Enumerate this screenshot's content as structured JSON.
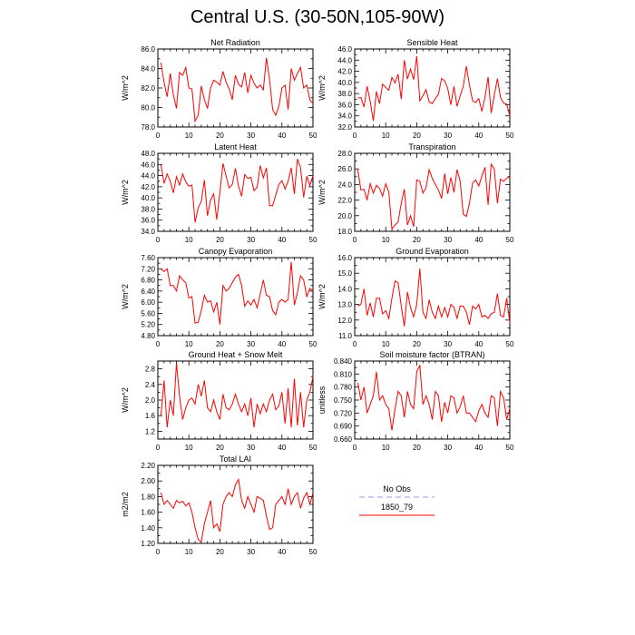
{
  "page": {
    "title": "Central U.S. (30-50N,105-90W)"
  },
  "legend": {
    "entries": [
      {
        "label": "No Obs",
        "color": "#9999ee",
        "dashed": true
      },
      {
        "label": "1850_79",
        "color": "#ff0000",
        "dashed": false
      }
    ]
  },
  "chart_data": [
    {
      "type": "line",
      "title": "Net Radiation",
      "ylabel": "W/m^2",
      "xlim": [
        0,
        50
      ],
      "ylim": [
        78.0,
        86.0
      ],
      "xticks": [
        0,
        10,
        20,
        30,
        40,
        50
      ],
      "yticks": [
        78.0,
        80.0,
        82.0,
        84.0,
        86.0
      ],
      "ydecimals": 1,
      "series": [
        {
          "color": "#ff0000",
          "values": [
            84.6,
            82.6,
            81.1,
            83.5,
            81.3,
            79.9,
            83.6,
            83.3,
            84.1,
            82.0,
            81.9,
            78.6,
            79.2,
            82.2,
            80.8,
            79.9,
            82.0,
            82.8,
            82.6,
            82.3,
            83.7,
            82.6,
            81.9,
            80.8,
            83.3,
            82.4,
            82.1,
            83.6,
            81.5,
            83.3,
            82.5,
            82.0,
            82.3,
            81.8,
            85.1,
            82.9,
            79.8,
            79.2,
            80.1,
            82.0,
            82.3,
            79.8,
            84.0,
            82.8,
            83.5,
            84.1,
            82.0,
            82.3,
            80.8,
            80.4
          ]
        }
      ]
    },
    {
      "type": "line",
      "title": "Sensible Heat",
      "ylabel": "W/m^2",
      "xlim": [
        0,
        50
      ],
      "ylim": [
        32.0,
        46.0
      ],
      "xticks": [
        0,
        10,
        20,
        30,
        40,
        50
      ],
      "yticks": [
        32.0,
        34.0,
        36.0,
        38.0,
        40.0,
        42.0,
        44.0,
        46.0
      ],
      "ydecimals": 1,
      "series": [
        {
          "color": "#ff0000",
          "values": [
            37.2,
            37.3,
            35.6,
            39.3,
            36.6,
            33.1,
            38.4,
            36.2,
            39.7,
            39.1,
            38.6,
            40.9,
            39.9,
            41.5,
            37.0,
            44.0,
            40.6,
            42.4,
            40.5,
            44.7,
            36.7,
            37.6,
            38.7,
            36.5,
            36.2,
            37.1,
            37.9,
            40.7,
            40.3,
            38.9,
            36.0,
            39.3,
            35.7,
            37.6,
            39.3,
            42.9,
            39.5,
            36.7,
            36.4,
            37.1,
            34.8,
            37.3,
            41.0,
            34.5,
            37.7,
            40.7,
            37.3,
            36.3,
            36.1,
            34.0
          ]
        }
      ]
    },
    {
      "type": "line",
      "title": "Latent Heat",
      "ylabel": "W/m^2",
      "xlim": [
        0,
        50
      ],
      "ylim": [
        34.0,
        48.0
      ],
      "xticks": [
        0,
        10,
        20,
        30,
        40,
        50
      ],
      "yticks": [
        34.0,
        36.0,
        38.0,
        40.0,
        42.0,
        44.0,
        46.0,
        48.0
      ],
      "ydecimals": 1,
      "series": [
        {
          "color": "#ff0000",
          "values": [
            46.0,
            42.6,
            44.3,
            43.0,
            40.9,
            43.8,
            42.3,
            44.3,
            42.9,
            42.1,
            42.3,
            35.6,
            38.2,
            39.4,
            43.2,
            36.8,
            39.6,
            40.7,
            36.1,
            41.0,
            46.2,
            43.9,
            41.8,
            42.4,
            45.3,
            42.1,
            40.3,
            44.2,
            43.5,
            43.7,
            41.3,
            41.9,
            45.8,
            43.6,
            45.4,
            38.6,
            38.6,
            40.5,
            42.4,
            43.1,
            41.6,
            43.0,
            45.4,
            40.7,
            47.0,
            45.4,
            40.1,
            43.9,
            42.2,
            44.0
          ]
        }
      ]
    },
    {
      "type": "line",
      "title": "Transpiration",
      "ylabel": "W/m^2",
      "xlim": [
        0,
        50
      ],
      "ylim": [
        18.0,
        28.0
      ],
      "xticks": [
        0,
        10,
        20,
        30,
        40,
        50
      ],
      "yticks": [
        18.0,
        20.0,
        22.0,
        24.0,
        26.0,
        28.0
      ],
      "ydecimals": 1,
      "series": [
        {
          "color": "#ff0000",
          "values": [
            25.9,
            23.3,
            23.4,
            22.0,
            24.1,
            22.9,
            23.9,
            23.5,
            22.5,
            24.1,
            23.0,
            18.3,
            18.8,
            19.2,
            21.6,
            23.4,
            18.8,
            20.0,
            18.6,
            24.6,
            24.4,
            22.9,
            23.6,
            25.9,
            24.8,
            24.0,
            23.3,
            22.2,
            25.4,
            22.8,
            24.9,
            23.0,
            25.9,
            24.4,
            20.2,
            19.9,
            21.6,
            24.2,
            24.6,
            23.8,
            25.1,
            26.2,
            21.4,
            26.6,
            26.0,
            21.6,
            24.7,
            24.4,
            24.8,
            25.0
          ]
        }
      ]
    },
    {
      "type": "line",
      "title": "Canopy Evaporation",
      "ylabel": "W/m^2",
      "xlim": [
        0,
        50
      ],
      "ylim": [
        4.8,
        7.6
      ],
      "xticks": [
        0,
        10,
        20,
        30,
        40,
        50
      ],
      "yticks": [
        4.8,
        5.2,
        5.6,
        6.0,
        6.4,
        6.8,
        7.2,
        7.6
      ],
      "ydecimals": 2,
      "series": [
        {
          "color": "#ff0000",
          "values": [
            7.2,
            7.1,
            7.2,
            6.6,
            6.6,
            6.4,
            6.95,
            6.8,
            6.7,
            6.15,
            6.2,
            5.25,
            5.28,
            5.7,
            6.25,
            6.0,
            6.05,
            5.65,
            6.0,
            5.2,
            6.6,
            6.4,
            6.5,
            6.7,
            6.9,
            7.0,
            6.6,
            5.85,
            6.05,
            5.9,
            6.1,
            5.8,
            6.3,
            6.8,
            6.25,
            6.2,
            5.7,
            5.55,
            6.0,
            6.1,
            6.0,
            6.1,
            7.45,
            5.9,
            6.35,
            6.95,
            6.8,
            6.2,
            6.5,
            6.4
          ]
        }
      ]
    },
    {
      "type": "line",
      "title": "Ground Evaporation",
      "ylabel": "W/m^2",
      "xlim": [
        0,
        50
      ],
      "ylim": [
        11.0,
        16.0
      ],
      "xticks": [
        0,
        10,
        20,
        30,
        40,
        50
      ],
      "yticks": [
        11.0,
        12.0,
        13.0,
        14.0,
        15.0,
        16.0
      ],
      "ydecimals": 1,
      "series": [
        {
          "color": "#ff0000",
          "values": [
            12.9,
            13.0,
            14.0,
            12.3,
            13.1,
            12.2,
            13.4,
            13.4,
            12.4,
            12.6,
            12.1,
            13.4,
            14.5,
            14.4,
            12.9,
            11.6,
            13.8,
            12.8,
            12.2,
            13.0,
            15.3,
            12.5,
            12.1,
            13.3,
            12.5,
            12.1,
            12.9,
            12.2,
            12.8,
            12.2,
            13.0,
            12.8,
            12.1,
            12.9,
            12.9,
            12.5,
            11.7,
            12.9,
            12.7,
            13.0,
            12.2,
            12.3,
            12.1,
            12.4,
            12.5,
            13.7,
            12.3,
            12.2,
            13.4,
            11.8
          ]
        }
      ]
    },
    {
      "type": "line",
      "title": "Ground Heat + Snow Melt",
      "ylabel": "W/m^2",
      "xlim": [
        0,
        50
      ],
      "ylim": [
        1.0,
        3.0
      ],
      "xticks": [
        0,
        10,
        20,
        30,
        40,
        50
      ],
      "yticks": [
        1.2,
        1.6,
        2.0,
        2.4,
        2.8
      ],
      "ydecimals": 1,
      "series": [
        {
          "color": "#ff0000",
          "values": [
            1.6,
            2.5,
            1.3,
            2.0,
            1.6,
            2.95,
            2.1,
            1.5,
            1.8,
            2.0,
            2.05,
            1.9,
            2.4,
            2.1,
            2.5,
            1.8,
            1.7,
            2.0,
            1.7,
            1.5,
            2.15,
            1.8,
            1.75,
            1.9,
            2.15,
            1.9,
            1.7,
            1.9,
            1.6,
            2.05,
            1.3,
            1.9,
            1.65,
            1.9,
            1.7,
            2.0,
            2.15,
            1.75,
            1.85,
            2.2,
            1.4,
            2.3,
            1.3,
            2.55,
            1.35,
            2.2,
            1.3,
            2.0,
            2.2,
            2.6
          ]
        }
      ]
    },
    {
      "type": "line",
      "title": "Soil moisture factor (BTRAN)",
      "ylabel": "unitless",
      "xlim": [
        0,
        50
      ],
      "ylim": [
        0.66,
        0.84
      ],
      "xticks": [
        0,
        10,
        20,
        30,
        40,
        50
      ],
      "yticks": [
        0.66,
        0.69,
        0.72,
        0.75,
        0.78,
        0.81,
        0.84
      ],
      "ydecimals": 3,
      "series": [
        {
          "color": "#ff0000",
          "values": [
            0.79,
            0.75,
            0.78,
            0.72,
            0.74,
            0.76,
            0.815,
            0.75,
            0.76,
            0.74,
            0.73,
            0.68,
            0.73,
            0.77,
            0.76,
            0.71,
            0.77,
            0.74,
            0.73,
            0.815,
            0.83,
            0.74,
            0.76,
            0.74,
            0.705,
            0.77,
            0.76,
            0.7,
            0.745,
            0.72,
            0.76,
            0.755,
            0.72,
            0.735,
            0.76,
            0.72,
            0.72,
            0.71,
            0.7,
            0.725,
            0.74,
            0.72,
            0.71,
            0.76,
            0.755,
            0.69,
            0.77,
            0.755,
            0.705,
            0.73
          ]
        }
      ]
    },
    {
      "type": "line",
      "title": "Total LAI",
      "ylabel": "m2/m2",
      "xlim": [
        0,
        50
      ],
      "ylim": [
        1.2,
        2.2
      ],
      "xticks": [
        0,
        10,
        20,
        30,
        40,
        50
      ],
      "yticks": [
        1.2,
        1.4,
        1.6,
        1.8,
        2.0,
        2.2
      ],
      "ydecimals": 2,
      "series": [
        {
          "color": "#ff0000",
          "values": [
            1.85,
            1.7,
            1.75,
            1.7,
            1.65,
            1.75,
            1.72,
            1.74,
            1.68,
            1.72,
            1.6,
            1.4,
            1.25,
            1.22,
            1.45,
            1.6,
            1.75,
            1.4,
            1.45,
            1.35,
            1.7,
            1.8,
            1.85,
            1.8,
            1.95,
            2.02,
            1.75,
            1.65,
            1.8,
            1.7,
            1.6,
            1.8,
            1.78,
            1.75,
            1.55,
            1.38,
            1.4,
            1.7,
            1.75,
            1.8,
            1.7,
            1.9,
            1.7,
            1.8,
            1.85,
            1.65,
            1.78,
            1.85,
            1.7,
            1.85
          ]
        }
      ]
    }
  ]
}
